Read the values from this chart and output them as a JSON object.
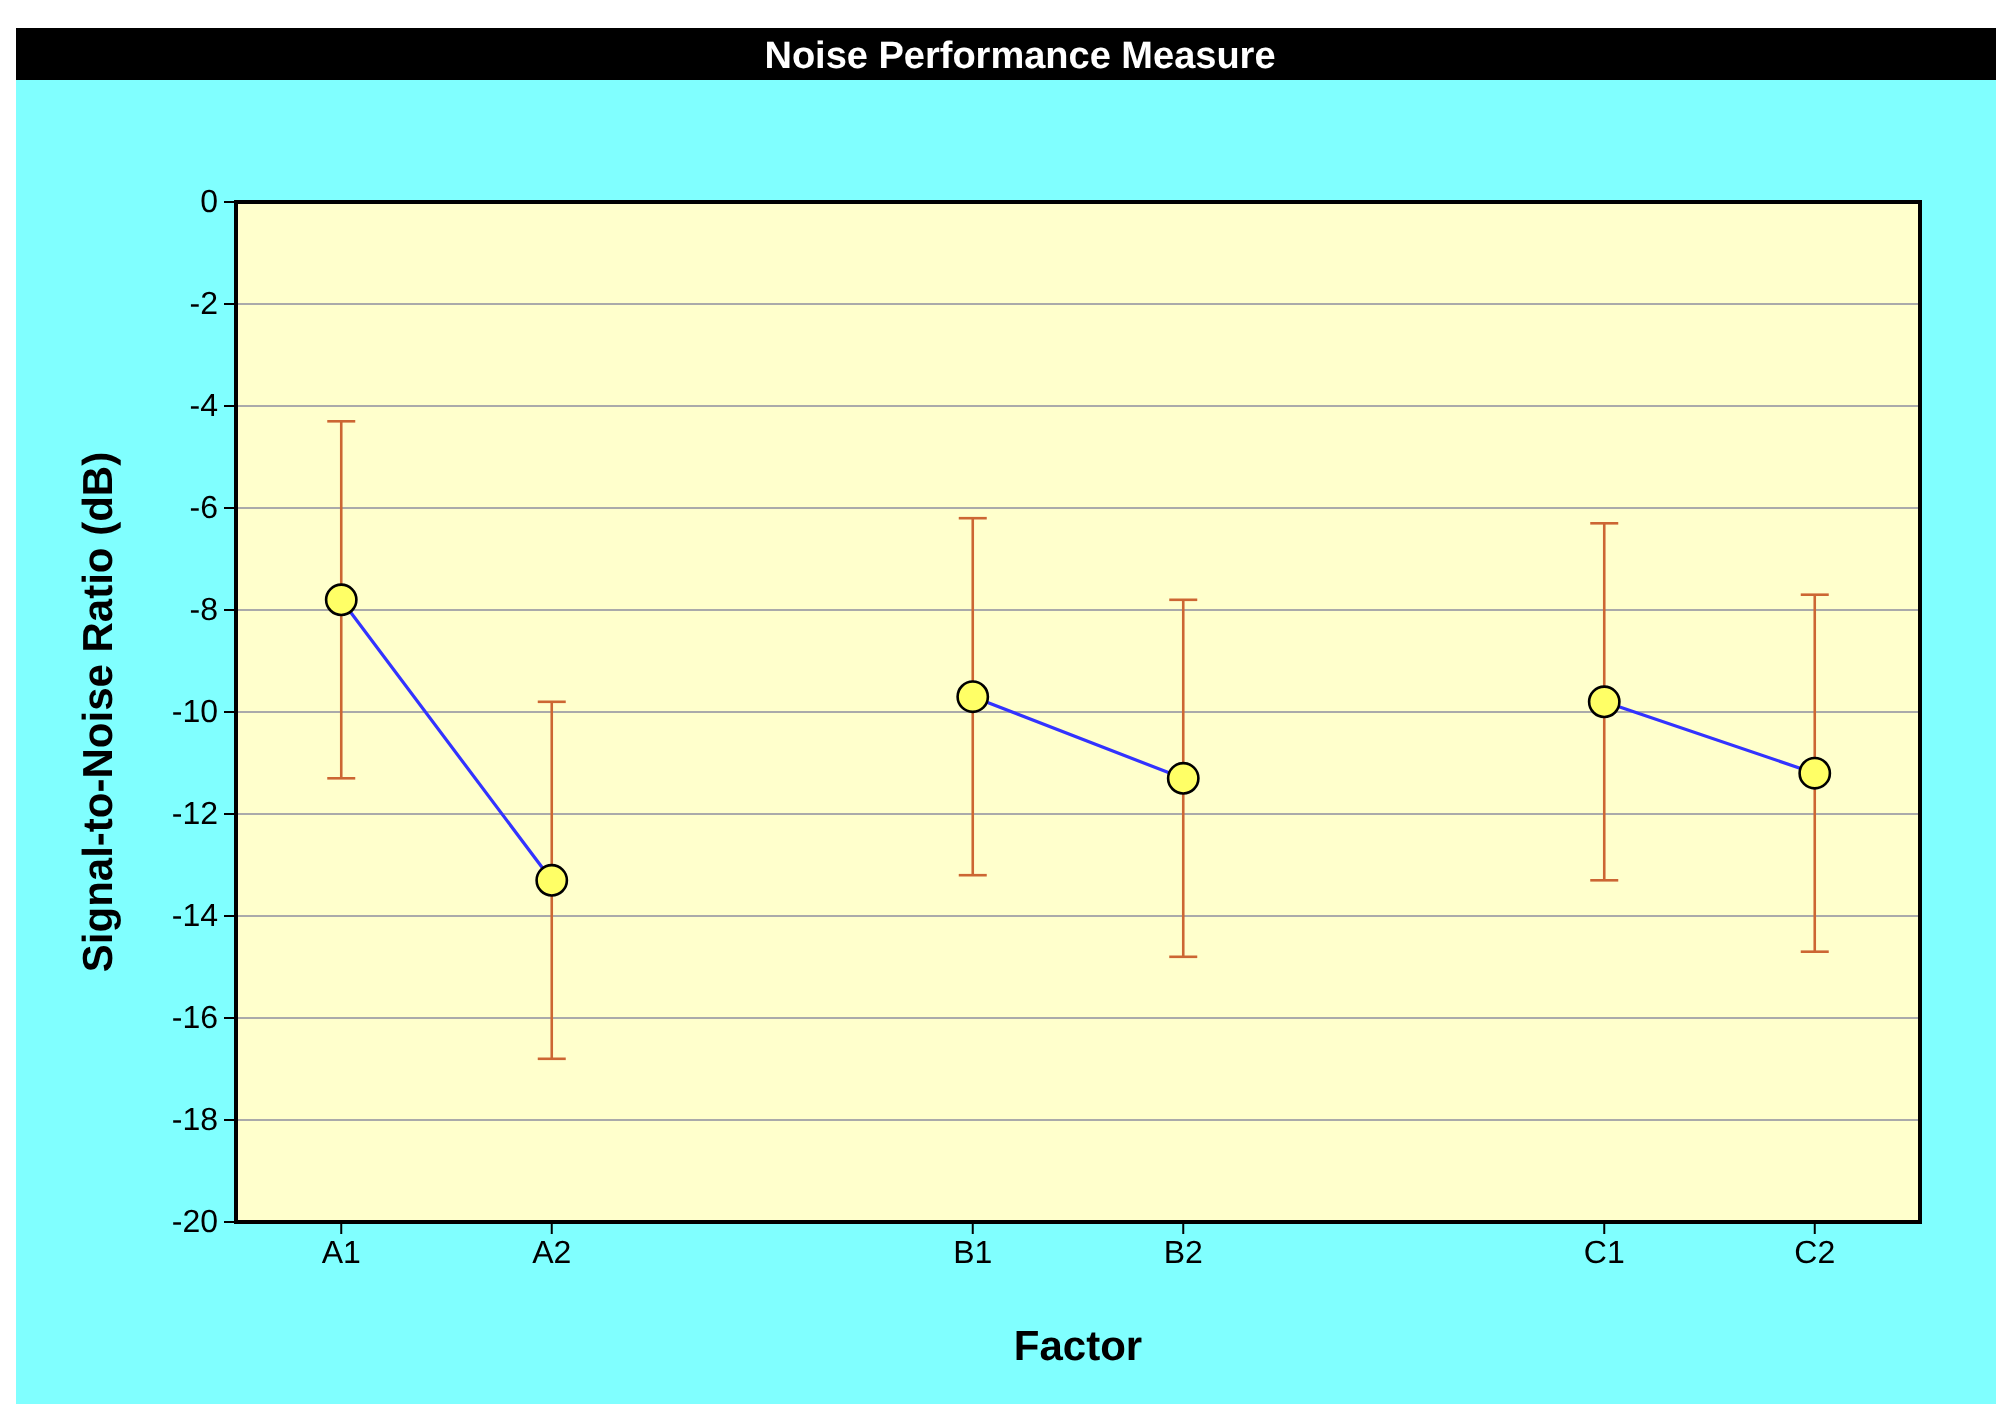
{
  "chart_data": {
    "type": "line",
    "title": "Noise Performance Measure",
    "xlabel": "Factor",
    "ylabel": "Signal-to-Noise Ratio (dB)",
    "categories": [
      "A1",
      "A2",
      null,
      "B1",
      "B2",
      null,
      "C1",
      "C2"
    ],
    "series": [
      {
        "color": "#3333ff",
        "colors": [
          "#ffff66",
          "#ffff66",
          null,
          "#ffff66",
          "#ffff66",
          null,
          "#ffff66",
          "#ffff66"
        ],
        "values": [
          -7.8,
          -13.3,
          null,
          -9.7,
          -11.3,
          null,
          -9.8,
          -11.2
        ],
        "errors": [
          3.5,
          3.5,
          null,
          3.5,
          3.5,
          null,
          3.5,
          3.5
        ]
      }
    ],
    "ylim": [
      -20,
      0
    ],
    "yticks": [
      0,
      -2,
      -4,
      -6,
      -8,
      -10,
      -12,
      -14,
      -16,
      -18,
      -20
    ],
    "grid": "y",
    "marker": "circle",
    "line_style": "solid"
  }
}
